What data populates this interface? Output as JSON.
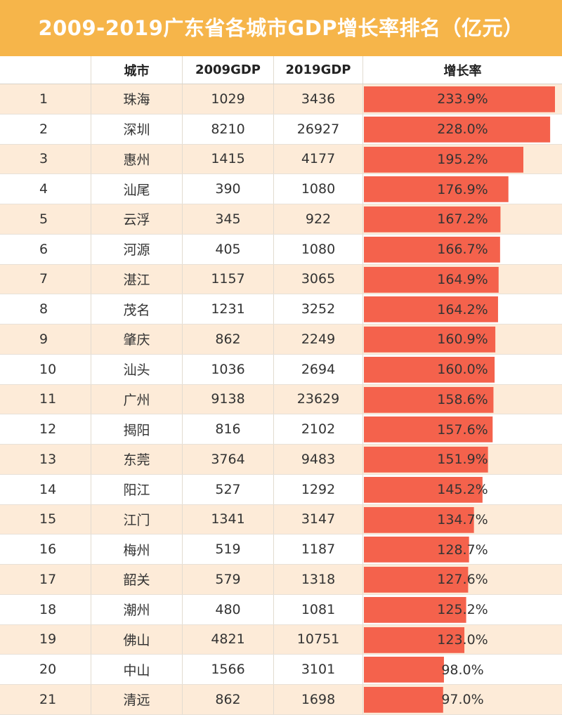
{
  "title": "2009-2019广东省各城市GDP增长率排名（亿元）",
  "colors": {
    "title_bg": "#f6b54a",
    "bar": "#f4624c",
    "row_alt": "#fdebd8"
  },
  "chart_data": {
    "type": "table",
    "title": "2009-2019广东省各城市GDP增长率排名（亿元）",
    "columns": [
      "",
      "城市",
      "2009GDP",
      "2019GDP",
      "增长率"
    ],
    "rows": [
      {
        "rank": "1",
        "city": "珠海",
        "gdp2009": "1029",
        "gdp2019": "3436",
        "growth": "233.9%",
        "growth_value": 233.9
      },
      {
        "rank": "2",
        "city": "深圳",
        "gdp2009": "8210",
        "gdp2019": "26927",
        "growth": "228.0%",
        "growth_value": 228.0
      },
      {
        "rank": "3",
        "city": "惠州",
        "gdp2009": "1415",
        "gdp2019": "4177",
        "growth": "195.2%",
        "growth_value": 195.2
      },
      {
        "rank": "4",
        "city": "汕尾",
        "gdp2009": "390",
        "gdp2019": "1080",
        "growth": "176.9%",
        "growth_value": 176.9
      },
      {
        "rank": "5",
        "city": "云浮",
        "gdp2009": "345",
        "gdp2019": "922",
        "growth": "167.2%",
        "growth_value": 167.2
      },
      {
        "rank": "6",
        "city": "河源",
        "gdp2009": "405",
        "gdp2019": "1080",
        "growth": "166.7%",
        "growth_value": 166.7
      },
      {
        "rank": "7",
        "city": "湛江",
        "gdp2009": "1157",
        "gdp2019": "3065",
        "growth": "164.9%",
        "growth_value": 164.9
      },
      {
        "rank": "8",
        "city": "茂名",
        "gdp2009": "1231",
        "gdp2019": "3252",
        "growth": "164.2%",
        "growth_value": 164.2
      },
      {
        "rank": "9",
        "city": "肇庆",
        "gdp2009": "862",
        "gdp2019": "2249",
        "growth": "160.9%",
        "growth_value": 160.9
      },
      {
        "rank": "10",
        "city": "汕头",
        "gdp2009": "1036",
        "gdp2019": "2694",
        "growth": "160.0%",
        "growth_value": 160.0
      },
      {
        "rank": "11",
        "city": "广州",
        "gdp2009": "9138",
        "gdp2019": "23629",
        "growth": "158.6%",
        "growth_value": 158.6
      },
      {
        "rank": "12",
        "city": "揭阳",
        "gdp2009": "816",
        "gdp2019": "2102",
        "growth": "157.6%",
        "growth_value": 157.6
      },
      {
        "rank": "13",
        "city": "东莞",
        "gdp2009": "3764",
        "gdp2019": "9483",
        "growth": "151.9%",
        "growth_value": 151.9
      },
      {
        "rank": "14",
        "city": "阳江",
        "gdp2009": "527",
        "gdp2019": "1292",
        "growth": "145.2%",
        "growth_value": 145.2
      },
      {
        "rank": "15",
        "city": "江门",
        "gdp2009": "1341",
        "gdp2019": "3147",
        "growth": "134.7%",
        "growth_value": 134.7
      },
      {
        "rank": "16",
        "city": "梅州",
        "gdp2009": "519",
        "gdp2019": "1187",
        "growth": "128.7%",
        "growth_value": 128.7
      },
      {
        "rank": "17",
        "city": "韶关",
        "gdp2009": "579",
        "gdp2019": "1318",
        "growth": "127.6%",
        "growth_value": 127.6
      },
      {
        "rank": "18",
        "city": "潮州",
        "gdp2009": "480",
        "gdp2019": "1081",
        "growth": "125.2%",
        "growth_value": 125.2
      },
      {
        "rank": "19",
        "city": "佛山",
        "gdp2009": "4821",
        "gdp2019": "10751",
        "growth": "123.0%",
        "growth_value": 123.0
      },
      {
        "rank": "20",
        "city": "中山",
        "gdp2009": "1566",
        "gdp2019": "3101",
        "growth": "98.0%",
        "growth_value": 98.0
      },
      {
        "rank": "21",
        "city": "清远",
        "gdp2009": "862",
        "gdp2019": "1698",
        "growth": "97.0%",
        "growth_value": 97.0
      }
    ],
    "bar_scale_max": 233.9
  }
}
